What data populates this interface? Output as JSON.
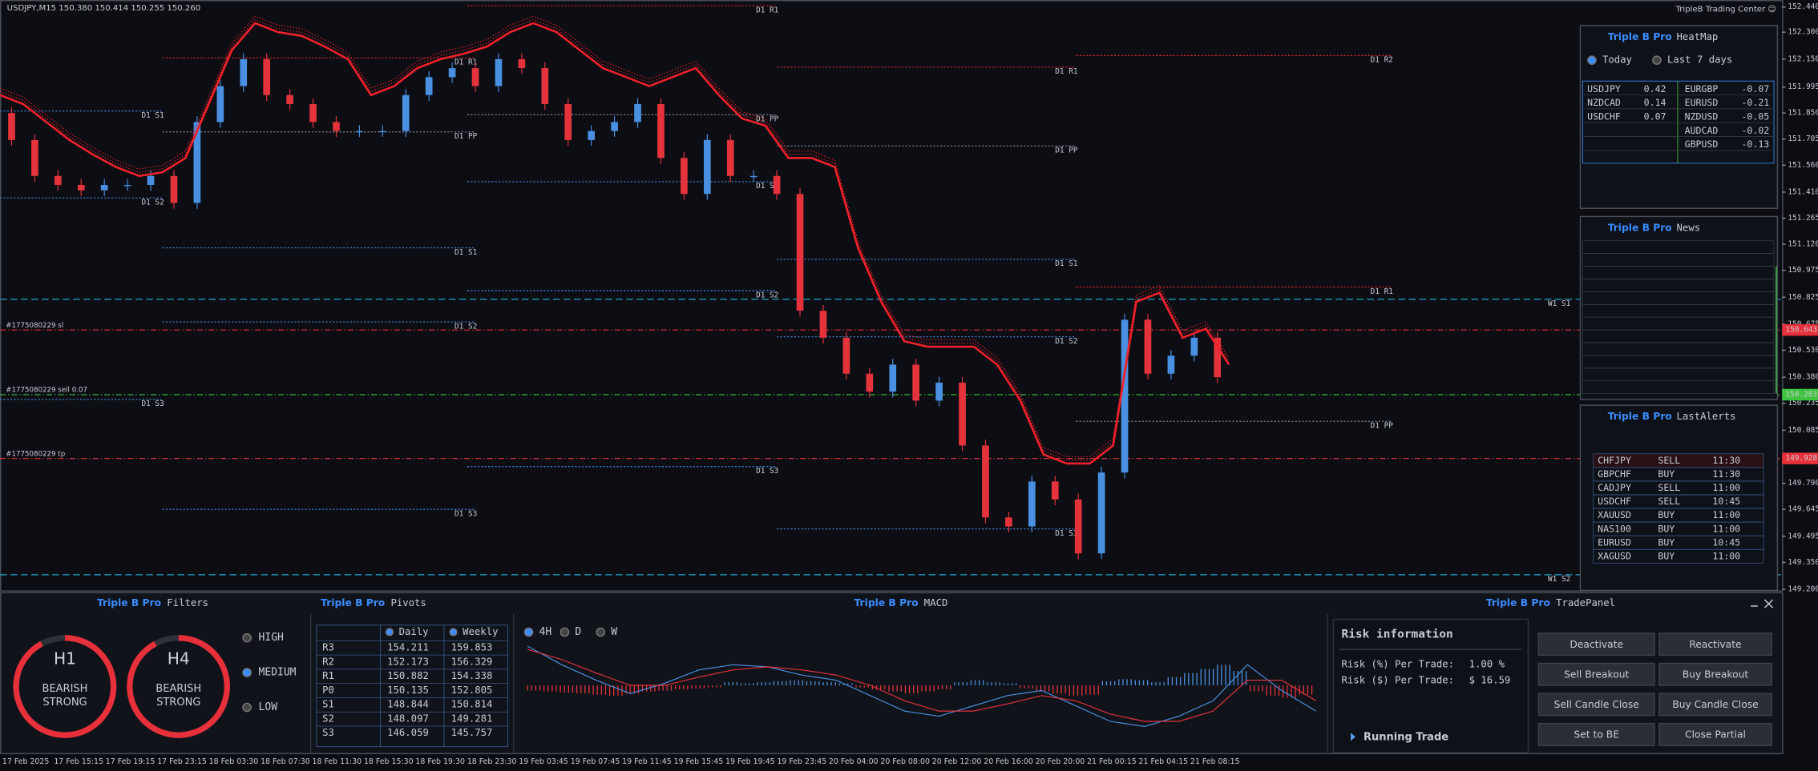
{
  "header": {
    "symbol_info": "USDJPY,M15  150.380 150.414 150.255 150.260",
    "brand": "TripleB Trading Center ☺"
  },
  "price_chart": {
    "ylim": [
      149.194,
      152.479
    ],
    "yticks": [
      {
        "value": 152.44,
        "label": "152.440"
      },
      {
        "value": 152.3,
        "label": "152.300"
      },
      {
        "value": 152.15,
        "label": "152.150"
      },
      {
        "value": 151.995,
        "label": "151.995"
      },
      {
        "value": 151.85,
        "label": "151.850"
      },
      {
        "value": 151.705,
        "label": "151.705"
      },
      {
        "value": 151.56,
        "label": "151.560"
      },
      {
        "value": 151.41,
        "label": "151.410"
      },
      {
        "value": 151.265,
        "label": "151.265"
      },
      {
        "value": 151.12,
        "label": "151.120"
      },
      {
        "value": 150.975,
        "label": "150.975"
      },
      {
        "value": 150.825,
        "label": "150.825"
      },
      {
        "value": 150.675,
        "label": "150.675"
      },
      {
        "value": 150.53,
        "label": "150.530"
      },
      {
        "value": 150.38,
        "label": "150.380"
      },
      {
        "value": 150.235,
        "label": "150.235"
      },
      {
        "value": 150.085,
        "label": "150.085"
      },
      {
        "value": 149.94,
        "label": "149.940"
      },
      {
        "value": 149.79,
        "label": "149.790"
      },
      {
        "value": 149.645,
        "label": "149.645"
      },
      {
        "value": 149.495,
        "label": "149.495"
      },
      {
        "value": 149.35,
        "label": "149.350"
      },
      {
        "value": 149.2,
        "label": "149.200"
      }
    ],
    "time_labels": [
      "17 Feb 2025",
      "17 Feb 15:15",
      "17 Feb 19:15",
      "17 Feb 23:15",
      "18 Feb 03:30",
      "18 Feb 07:30",
      "18 Feb 11:30",
      "18 Feb 15:30",
      "18 Feb 19:30",
      "18 Feb 23:30",
      "19 Feb 03:45",
      "19 Feb 07:45",
      "19 Feb 11:45",
      "19 Feb 15:45",
      "19 Feb 19:45",
      "19 Feb 23:45",
      "20 Feb 04:00",
      "20 Feb 08:00",
      "20 Feb 12:00",
      "20 Feb 16:00",
      "20 Feb 20:00",
      "21 Feb 00:15",
      "21 Feb 04:15",
      "21 Feb 08:15"
    ],
    "close": [
      151.85,
      151.7,
      151.5,
      151.45,
      151.42,
      151.45,
      151.45,
      151.5,
      151.35,
      151.8,
      152.0,
      152.15,
      151.95,
      151.9,
      151.8,
      151.75,
      151.75,
      151.75,
      151.95,
      152.05,
      152.1,
      152.0,
      152.15,
      152.1,
      151.9,
      151.7,
      151.75,
      151.8,
      151.9,
      151.6,
      151.4,
      151.7,
      151.5,
      151.5,
      151.4,
      150.75,
      150.6,
      150.4,
      150.3,
      150.45,
      150.25,
      150.35,
      150.0,
      149.6,
      149.55,
      149.8,
      149.7,
      149.4,
      149.85,
      150.7,
      150.4,
      150.5,
      150.6,
      150.38
    ],
    "trend": [
      151.95,
      151.9,
      151.8,
      151.7,
      151.62,
      151.55,
      151.5,
      151.52,
      151.6,
      151.9,
      152.2,
      152.35,
      152.3,
      152.28,
      152.22,
      152.15,
      151.95,
      152.0,
      152.1,
      152.15,
      152.18,
      152.22,
      152.3,
      152.35,
      152.3,
      152.2,
      152.1,
      152.05,
      152.0,
      152.05,
      152.1,
      151.95,
      151.82,
      151.78,
      151.6,
      151.6,
      151.55,
      151.1,
      150.8,
      150.58,
      150.55,
      150.55,
      150.55,
      150.45,
      150.25,
      149.95,
      149.9,
      149.9,
      150.0,
      150.8,
      150.85,
      150.6,
      150.65,
      150.45
    ],
    "daily_levels": [
      [
        {
          "label": "D1 S1",
          "price": 151.861,
          "color": "#4a86d8"
        },
        {
          "label": "D1 S2",
          "price": 151.378,
          "color": "#4a86d8"
        },
        {
          "label": "D1 S3",
          "price": 150.257,
          "color": "#4a86d8"
        }
      ],
      [
        {
          "label": "D1 R1",
          "price": 152.157,
          "color": "#d9252b"
        },
        {
          "label": "D1 PP",
          "price": 151.745,
          "color": "#8a8f98"
        },
        {
          "label": "D1 S1",
          "price": 151.1,
          "color": "#4a86d8"
        },
        {
          "label": "D1 S2",
          "price": 150.688,
          "color": "#4a86d8"
        },
        {
          "label": "D1 S3",
          "price": 149.645,
          "color": "#4a86d8"
        }
      ],
      [
        {
          "label": "D1 R1",
          "price": 152.447,
          "color": "#d9252b"
        },
        {
          "label": "D1 PP",
          "price": 151.841,
          "color": "#8a8f98"
        },
        {
          "label": "D1 S1",
          "price": 151.468,
          "color": "#4a86d8"
        },
        {
          "label": "D1 S2",
          "price": 150.862,
          "color": "#4a86d8"
        },
        {
          "label": "D1 S3",
          "price": 149.883,
          "color": "#4a86d8"
        }
      ],
      [
        {
          "label": "D1 R1",
          "price": 152.105,
          "color": "#d9252b"
        },
        {
          "label": "D1 PP",
          "price": 151.667,
          "color": "#8a8f98"
        },
        {
          "label": "D1 S1",
          "price": 151.036,
          "color": "#4a86d8"
        },
        {
          "label": "D1 S2",
          "price": 150.605,
          "color": "#4a86d8"
        },
        {
          "label": "D1 S3",
          "price": 149.536,
          "color": "#4a86d8"
        }
      ],
      [
        {
          "label": "D1 R2",
          "price": 152.17,
          "color": "#d9252b"
        },
        {
          "label": "D1 R1",
          "price": 150.882,
          "color": "#d9252b"
        },
        {
          "label": "D1 PP",
          "price": 150.135,
          "color": "#8a8f98"
        }
      ]
    ],
    "weekly_levels": [
      {
        "label": "W1 S1",
        "price": 150.814,
        "color": "#1fa6c9"
      },
      {
        "label": "W1 S2",
        "price": 149.281,
        "color": "#1fa6c9"
      }
    ],
    "orders": [
      {
        "label": "#1775080229 sl",
        "price": 150.643,
        "tag": "150.643",
        "color": "#e8303a"
      },
      {
        "label": "#1775080229 sell 0.07",
        "price": 150.283,
        "tag": "150.283",
        "color": "#3ec43e"
      },
      {
        "label": "#1775080229 tp",
        "price": 149.928,
        "tag": "149.928",
        "color": "#e8303a"
      }
    ]
  },
  "heatmap": {
    "brand": "Triple B Pro",
    "title": "HeatMap",
    "options": [
      "Today",
      "Last 7 days"
    ],
    "selected": 0,
    "positive": [
      {
        "pair": "USDJPY",
        "value": 0.42
      },
      {
        "pair": "NZDCAD",
        "value": 0.14
      },
      {
        "pair": "USDCHF",
        "value": 0.07
      }
    ],
    "negative": [
      {
        "pair": "EURGBP",
        "value": -0.07
      },
      {
        "pair": "EURUSD",
        "value": -0.21
      },
      {
        "pair": "NZDUSD",
        "value": -0.05
      },
      {
        "pair": "AUDCAD",
        "value": -0.02
      },
      {
        "pair": "GBPUSD",
        "value": -0.13
      }
    ]
  },
  "news": {
    "brand": "Triple B Pro",
    "title": "News"
  },
  "alerts": {
    "brand": "Triple B Pro",
    "title": "LastAlerts",
    "rows": [
      [
        "CHFJPY",
        "SELL",
        "11:30"
      ],
      [
        "GBPCHF",
        "BUY",
        "11:30"
      ],
      [
        "CADJPY",
        "SELL",
        "11:00"
      ],
      [
        "USDCHF",
        "SELL",
        "10:45"
      ],
      [
        "XAUUSD",
        "BUY",
        "11:00"
      ],
      [
        "NAS100",
        "BUY",
        "11:00"
      ],
      [
        "EURUSD",
        "BUY",
        "10:45"
      ],
      [
        "XAGUSD",
        "BUY",
        "11:00"
      ]
    ]
  },
  "filters": {
    "brand": "Triple B Pro",
    "title": "Filters",
    "gauges": [
      {
        "tf": "H1",
        "trend": "BEARISH",
        "strength": "STRONG"
      },
      {
        "tf": "H4",
        "trend": "BEARISH",
        "strength": "STRONG"
      }
    ],
    "levels": [
      "HIGH",
      "MEDIUM",
      "LOW"
    ],
    "selected": 1
  },
  "pivots": {
    "brand": "Triple B Pro",
    "title": "Pivots",
    "columns": [
      "Daily",
      "Weekly"
    ],
    "rows": [
      {
        "name": "R3",
        "daily": 154.211,
        "weekly": 159.853
      },
      {
        "name": "R2",
        "daily": 152.173,
        "weekly": 156.329
      },
      {
        "name": "R1",
        "daily": 150.882,
        "weekly": 154.338
      },
      {
        "name": "P0",
        "daily": 150.135,
        "weekly": 152.805
      },
      {
        "name": "S1",
        "daily": 148.844,
        "weekly": 150.814
      },
      {
        "name": "S2",
        "daily": 148.097,
        "weekly": 149.281
      },
      {
        "name": "S3",
        "daily": 146.059,
        "weekly": 145.757
      }
    ]
  },
  "macd": {
    "brand": "Triple B Pro",
    "title": "MACD",
    "timeframes": [
      "4H",
      "D",
      "W"
    ],
    "selected": 0,
    "ylim": [
      -45,
      45
    ],
    "histogram": [
      -5,
      -6,
      -7,
      -8,
      -9,
      -10,
      -8,
      -6,
      -5,
      -4,
      -3,
      -2,
      3,
      2,
      3,
      4,
      5,
      4,
      3,
      2,
      -2,
      -4,
      -6,
      -8,
      -6,
      -4,
      3,
      5,
      3,
      2,
      -3,
      -6,
      -8,
      -10,
      -9,
      4,
      6,
      5,
      3,
      8,
      12,
      16,
      20,
      14,
      -6,
      -10,
      -12,
      -9
    ],
    "macd": [
      38,
      20,
      5,
      -8,
      2,
      15,
      20,
      18,
      10,
      5,
      -10,
      -25,
      -30,
      -20,
      -10,
      -5,
      -20,
      -35,
      -40,
      -30,
      -15,
      20,
      -5,
      -25
    ],
    "signal": [
      35,
      25,
      12,
      0,
      0,
      8,
      15,
      18,
      15,
      10,
      0,
      -15,
      -25,
      -25,
      -18,
      -10,
      -15,
      -28,
      -35,
      -35,
      -25,
      5,
      5,
      -15
    ]
  },
  "trade": {
    "brand": "Triple B Pro",
    "title": "TradePanel",
    "risk_title": "Risk information",
    "risk_pct_label": "Risk (%) Per Trade:",
    "risk_pct": "1.00 %",
    "risk_usd_label": "Risk ($) Per Trade:",
    "risk_usd": "$ 16.59",
    "running": "Running Trade",
    "buttons": [
      "Deactivate",
      "Reactivate",
      "Sell Breakout",
      "Buy Breakout",
      "Sell Candle Close",
      "Buy Candle Close",
      "Set to BE",
      "Close Partial"
    ]
  }
}
